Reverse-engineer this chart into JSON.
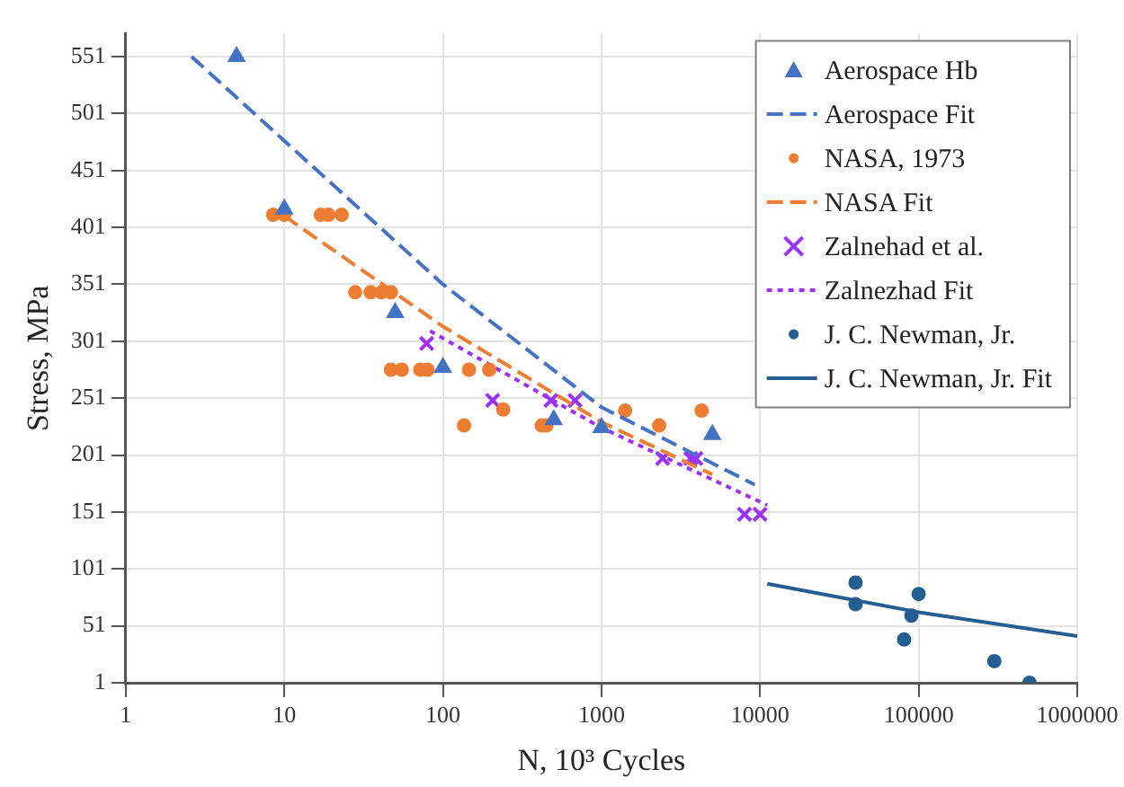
{
  "chart_data": {
    "type": "scatter",
    "xlabel": "N, 10³ Cycles",
    "ylabel": "Stress, MPa",
    "log": "x",
    "xlim": [
      1,
      1000000
    ],
    "ylim": [
      1,
      571
    ],
    "xticks": [
      1,
      10,
      100,
      1000,
      10000,
      100000,
      1000000
    ],
    "yticks": [
      1,
      51,
      101,
      151,
      201,
      251,
      301,
      351,
      401,
      451,
      501,
      551
    ],
    "grid": true,
    "legend": "top right",
    "series": [
      {
        "name": "Aerospace Hb",
        "type": "scatter",
        "color": "#4472c4",
        "marker": "triangle",
        "x": [
          5,
          10,
          50,
          100,
          500,
          1000,
          5000
        ],
        "values": [
          551,
          417,
          326,
          278,
          232,
          225,
          219
        ]
      },
      {
        "name": "Aerospace Fit",
        "type": "line",
        "color": "#4472c4",
        "line_style": "dashed",
        "x": [
          2.6,
          10,
          100,
          1000,
          9250
        ],
        "values": [
          551,
          477,
          351,
          243,
          175
        ]
      },
      {
        "name": "NASA, 1973",
        "type": "scatter",
        "color": "#ed7d31",
        "marker": "circle",
        "x": [
          8.5,
          10,
          17,
          19,
          23,
          28,
          35,
          41,
          47,
          47,
          55,
          72,
          80,
          146,
          196,
          240,
          136,
          420,
          449,
          1410,
          2310,
          4280
        ],
        "values": [
          412,
          412,
          412,
          412,
          412,
          344,
          344,
          344,
          344,
          276,
          276,
          276,
          276,
          276,
          276,
          241,
          227,
          227,
          227,
          240,
          227,
          240
        ]
      },
      {
        "name": "NASA Fit",
        "type": "line",
        "color": "#ed7d31",
        "line_style": "dashed",
        "x": [
          10,
          100,
          1000,
          5000
        ],
        "values": [
          411,
          314,
          230,
          184
        ]
      },
      {
        "name": "Zalnehad et al.",
        "type": "scatter",
        "color": "#9b30ff",
        "marker": "cross",
        "x": [
          79,
          206,
          480,
          681,
          2430,
          3660,
          3940,
          7980,
          10000
        ],
        "values": [
          299,
          249,
          249,
          249,
          198,
          198,
          198,
          149,
          149
        ]
      },
      {
        "name": "Zalnezhad Fit",
        "type": "line",
        "color": "#9b30ff",
        "line_style": "dotted",
        "x": [
          83,
          1000,
          11100
        ],
        "values": [
          310,
          225,
          157
        ]
      },
      {
        "name": "J. C. Newman, Jr.",
        "type": "scatter",
        "color": "#255e91",
        "marker": "circle",
        "x": [
          40000,
          40000,
          100000,
          90000,
          81000,
          300000,
          500000
        ],
        "values": [
          89,
          70,
          79,
          60,
          39,
          20,
          1
        ]
      },
      {
        "name": "J. C. Newman, Jr. Fit",
        "type": "line",
        "color": "#255e91",
        "line_style": "solid",
        "x": [
          11100,
          100000,
          1000000
        ],
        "values": [
          88,
          63,
          42
        ]
      }
    ]
  }
}
